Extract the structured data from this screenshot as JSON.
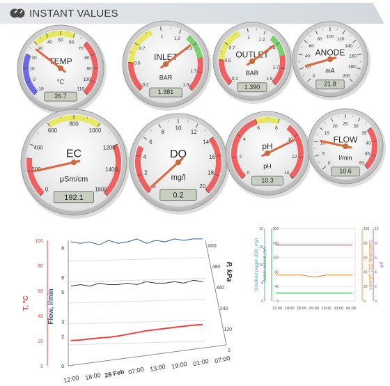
{
  "header": {
    "title": "INSTANT VALUES"
  },
  "gauges": [
    {
      "id": "temp",
      "label": "TEMP",
      "unit": "°C",
      "value": 26.7,
      "display": "26.7",
      "min": -10,
      "max": 110,
      "ticks": [
        "-10",
        "0",
        "10",
        "20",
        "30",
        "40",
        "50",
        "60",
        "70",
        "80",
        "90",
        "100",
        "110"
      ],
      "bands": [
        {
          "from": -10,
          "to": 20,
          "color": "#6a6ae8"
        },
        {
          "from": 30,
          "to": 60,
          "color": "#e8e860"
        },
        {
          "from": 70,
          "to": 110,
          "color": "#f06060"
        }
      ]
    },
    {
      "id": "inlet",
      "label": "INLET",
      "unit": "BAR",
      "value": 1.381,
      "display": "1.381",
      "min": 0.2,
      "max": 1.9,
      "ticks": [
        "0.2",
        "0.5",
        "0.7",
        "1",
        "1.2",
        "1.4",
        "1.7",
        "1.9"
      ],
      "bands": [
        {
          "from": 0.2,
          "to": 0.5,
          "color": "#f06060"
        },
        {
          "from": 0.5,
          "to": 0.9,
          "color": "#e8e860"
        },
        {
          "from": 1.3,
          "to": 1.55,
          "color": "#7ad16a"
        },
        {
          "from": 1.55,
          "to": 1.9,
          "color": "#f06060"
        }
      ]
    },
    {
      "id": "outlet",
      "label": "OUTLET",
      "unit": "BAR",
      "value": 1.39,
      "display": "1.390",
      "min": 0.2,
      "max": 1.9,
      "ticks": [
        "0.2",
        "0.5",
        "0.7",
        "1",
        "1.2",
        "1.4",
        "1.7",
        "1.9"
      ],
      "bands": [
        {
          "from": 0.2,
          "to": 0.5,
          "color": "#f06060"
        },
        {
          "from": 0.5,
          "to": 0.9,
          "color": "#e8e860"
        },
        {
          "from": 1.3,
          "to": 1.55,
          "color": "#7ad16a"
        },
        {
          "from": 1.55,
          "to": 1.9,
          "color": "#f06060"
        }
      ]
    },
    {
      "id": "anode",
      "label": "ANODE",
      "unit": "mA",
      "value": 21.8,
      "display": "21.8",
      "min": 0,
      "max": 200,
      "ticks": [
        "0",
        "20",
        "40",
        "60",
        "80",
        "100",
        "120",
        "140",
        "160",
        "180",
        "200"
      ],
      "bands": []
    },
    {
      "id": "ec",
      "label": "EC",
      "unit": "μSm/cm",
      "value": 192.1,
      "display": "192.1",
      "min": 0,
      "max": 1600,
      "ticks": [
        "0",
        "200",
        "400",
        "600",
        "800",
        "1000",
        "1200",
        "1400",
        "1600"
      ],
      "bands": [
        {
          "from": 0,
          "to": 300,
          "color": "#f06060"
        },
        {
          "from": 600,
          "to": 1000,
          "color": "#e8e860"
        },
        {
          "from": 1200,
          "to": 1600,
          "color": "#f06060"
        }
      ]
    },
    {
      "id": "do",
      "label": "DO",
      "unit": "mg/l",
      "value": 0.2,
      "display": "0.2",
      "min": 0,
      "max": 20,
      "ticks": [
        "0",
        "2",
        "4",
        "6",
        "8",
        "10",
        "12",
        "14",
        "16",
        "18",
        "20"
      ],
      "bands": [
        {
          "from": 0,
          "to": 5,
          "color": "#f06060"
        },
        {
          "from": 14,
          "to": 20,
          "color": "#f06060"
        }
      ]
    },
    {
      "id": "ph",
      "label": "pH",
      "unit": "pH",
      "value": 10.3,
      "display": "10.3",
      "min": 0,
      "max": 14,
      "ticks": [
        "0",
        "2",
        "4",
        "6",
        "8",
        "10",
        "12",
        "14"
      ],
      "bands": [
        {
          "from": 0,
          "to": 6,
          "color": "#f06060"
        },
        {
          "from": 6,
          "to": 8,
          "color": "#e8e860"
        },
        {
          "from": 9,
          "to": 14,
          "color": "#f06060"
        }
      ]
    },
    {
      "id": "flow",
      "label": "FLOW",
      "unit": "l/min",
      "value": 10.6,
      "display": "10.6",
      "min": 0,
      "max": 50,
      "ticks": [
        "0",
        "5",
        "10",
        "15",
        "20",
        "25",
        "30",
        "35",
        "40",
        "45",
        "50"
      ],
      "bands": [
        {
          "from": 35,
          "to": 50,
          "color": "#f06060"
        }
      ]
    }
  ],
  "chart_data": [
    {
      "type": "line",
      "x_ticks": [
        "12:00",
        "18:00",
        "26 Feb",
        "07:00",
        "13:00",
        "19:00",
        "01:00",
        "07:00"
      ],
      "axes": [
        {
          "label": "T, °C",
          "color": "#f04040",
          "ticks": [
            "0",
            "20",
            "40",
            "60",
            "80",
            "100"
          ]
        },
        {
          "label": "Flow, l/min",
          "color": "#2c5aa0",
          "ticks": [
            "0",
            "2",
            "3",
            "5",
            "6",
            "8"
          ]
        },
        {
          "label": "P, kPa",
          "color": "#222222",
          "ticks": [
            "0",
            "120",
            "240",
            "360",
            "480",
            "600"
          ]
        }
      ],
      "series": [
        {
          "axis": 0,
          "color": "#f04040",
          "values": [
            20,
            20,
            20.5,
            20.8,
            21,
            21.5,
            22.5,
            23.5,
            24.5,
            25,
            25.5,
            26,
            26.5,
            27,
            27
          ]
        },
        {
          "axis": 1,
          "color": "#2c5aa0",
          "values": [
            8.4,
            8.3,
            8.4,
            8.2,
            8.5,
            8.3,
            8.4,
            8.6,
            8.3,
            8.5,
            8.4,
            8.6,
            8.5,
            8.6,
            8.6
          ]
        },
        {
          "axis": 1,
          "color": "#333333",
          "values": [
            5.4,
            5.5,
            5.4,
            5.6,
            5.5,
            5.5,
            5.6,
            5.5,
            5.7,
            5.6,
            5.6,
            5.7,
            5.6,
            5.8,
            5.7
          ]
        }
      ]
    },
    {
      "type": "line",
      "x_ticks": [
        "12:00",
        "19:00",
        "02:00",
        "09:00",
        "16:00",
        "23:00",
        "06:00"
      ],
      "axes": [
        {
          "label": "Dissolved oxygen (DO), mg/l",
          "color": "#3a9ad0",
          "ticks": [
            "0",
            "5",
            "10",
            "15",
            "20"
          ]
        },
        {
          "label": "Anode current, mA",
          "color": "#2a9a40",
          "ticks": [
            "0",
            "40",
            "80",
            "120",
            "160",
            "200"
          ]
        },
        {
          "label": "Conductivity (EC), μSm/cm",
          "color": "#e08030",
          "ticks": [
            "0",
            "20",
            "40",
            "60",
            "80",
            "100"
          ]
        },
        {
          "label": "pH",
          "color": "#9040b0",
          "ticks": [
            "0",
            "2",
            "4",
            "6",
            "8",
            "10"
          ]
        }
      ],
      "series": [
        {
          "axis": 3,
          "color": "#9a40b0",
          "values": [
            10.3,
            10.3,
            10.3,
            10.3,
            10.3,
            10.3,
            10.3
          ]
        },
        {
          "axis": 2,
          "color": "#e08030",
          "values": [
            36,
            36,
            36,
            33,
            36,
            36,
            36
          ]
        },
        {
          "axis": 1,
          "color": "#2a9a40",
          "values": [
            22,
            22,
            22,
            22,
            22,
            22,
            22
          ]
        }
      ]
    }
  ]
}
